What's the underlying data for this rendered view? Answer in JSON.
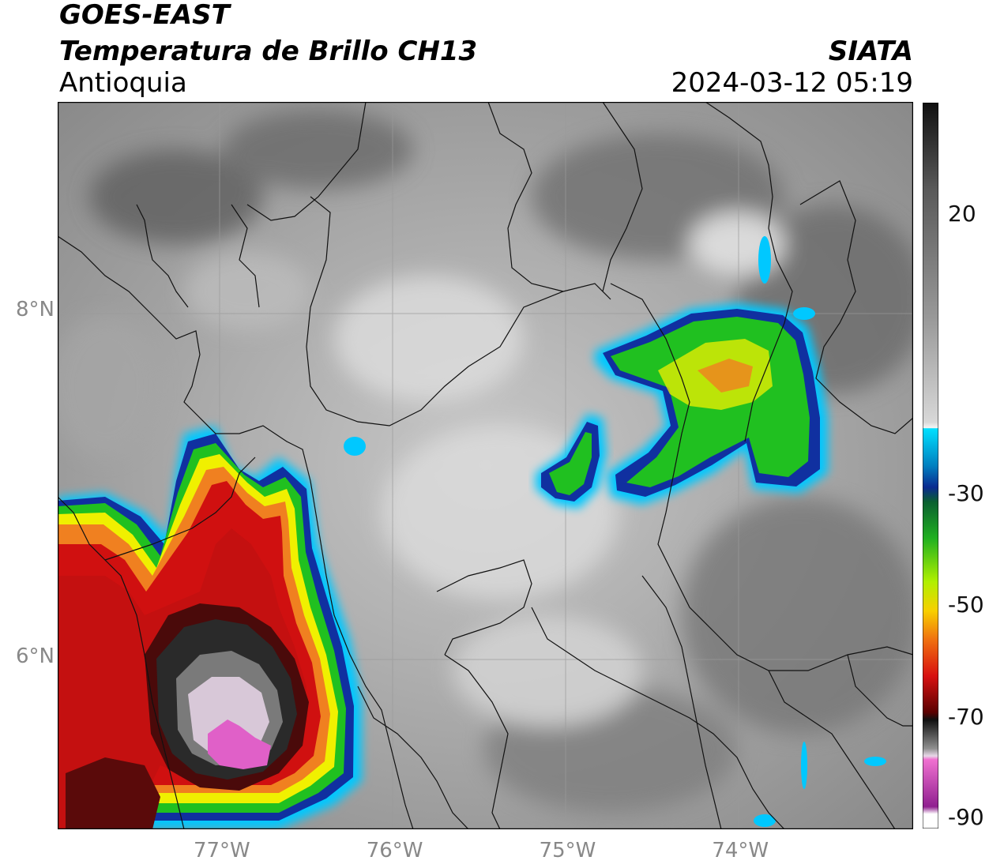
{
  "header": {
    "title_line1": "GOES-EAST",
    "title_line2": "Temperatura de Brillo CH13",
    "region": "Antioquia",
    "organization": "SIATA",
    "timestamp": "2024-03-12 05:19"
  },
  "map": {
    "lon_range": [
      -77.95,
      -73.0
    ],
    "lat_range": [
      5.0,
      9.2
    ],
    "x_ticks": [
      {
        "lon": -77,
        "label": "77°W"
      },
      {
        "lon": -76,
        "label": "76°W"
      },
      {
        "lon": -75,
        "label": "75°W"
      },
      {
        "lon": -74,
        "label": "74°W"
      }
    ],
    "y_ticks": [
      {
        "lat": 8,
        "label": "8°N"
      },
      {
        "lat": 6,
        "label": "6°N"
      }
    ],
    "gridlines": true,
    "variable": "brightness temperature",
    "colors": {
      "cold_core": "#e060c8",
      "very_cold": "#303030",
      "red": "#d01010",
      "orange": "#f08020",
      "yellow": "#f0f000",
      "green": "#20c020",
      "blue": "#1030a0",
      "cyan": "#00c8ff"
    }
  },
  "colorbar": {
    "range": [
      -90,
      40
    ],
    "tick_labels": [
      {
        "value": 20,
        "label": "20"
      },
      {
        "value": -30,
        "label": "-30"
      },
      {
        "value": -50,
        "label": "-50"
      },
      {
        "value": -70,
        "label": "-70"
      },
      {
        "value": -90,
        "label": "-90"
      }
    ]
  }
}
